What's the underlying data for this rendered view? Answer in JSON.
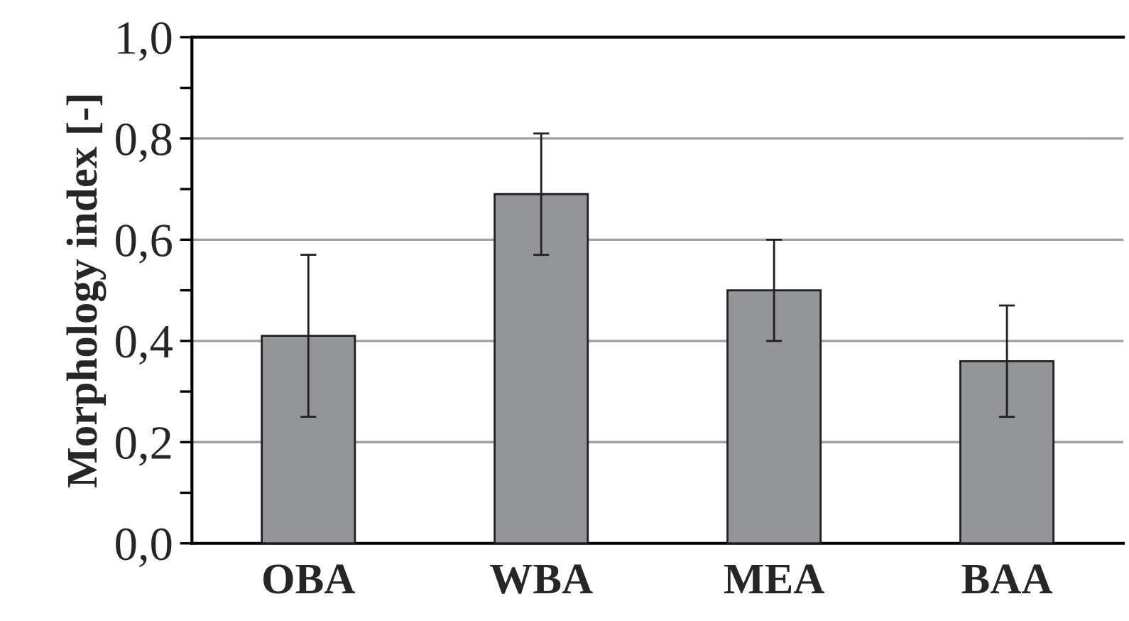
{
  "chart_data": {
    "type": "bar",
    "ylabel": "Morphology index [-]",
    "categories": [
      "OBA",
      "WBA",
      "MEA",
      "BAA"
    ],
    "values": [
      0.41,
      0.69,
      0.5,
      0.36
    ],
    "errors": [
      0.16,
      0.12,
      0.1,
      0.11
    ],
    "color": "#939598",
    "ylim": [
      0,
      1.0
    ],
    "yticks": [
      {
        "value": 0,
        "label": "0,0"
      },
      {
        "value": 0.1,
        "label": null
      },
      {
        "value": 0.2,
        "label": "0,2"
      },
      {
        "value": 0.3,
        "label": null
      },
      {
        "value": 0.4,
        "label": "0,4"
      },
      {
        "value": 0.5,
        "label": null
      },
      {
        "value": 0.6,
        "label": "0,6"
      },
      {
        "value": 0.7,
        "label": null
      },
      {
        "value": 0.8,
        "label": "0,8"
      },
      {
        "value": 0.9,
        "label": null
      },
      {
        "value": 1.0,
        "label": "1,0"
      }
    ],
    "grid": "y"
  }
}
